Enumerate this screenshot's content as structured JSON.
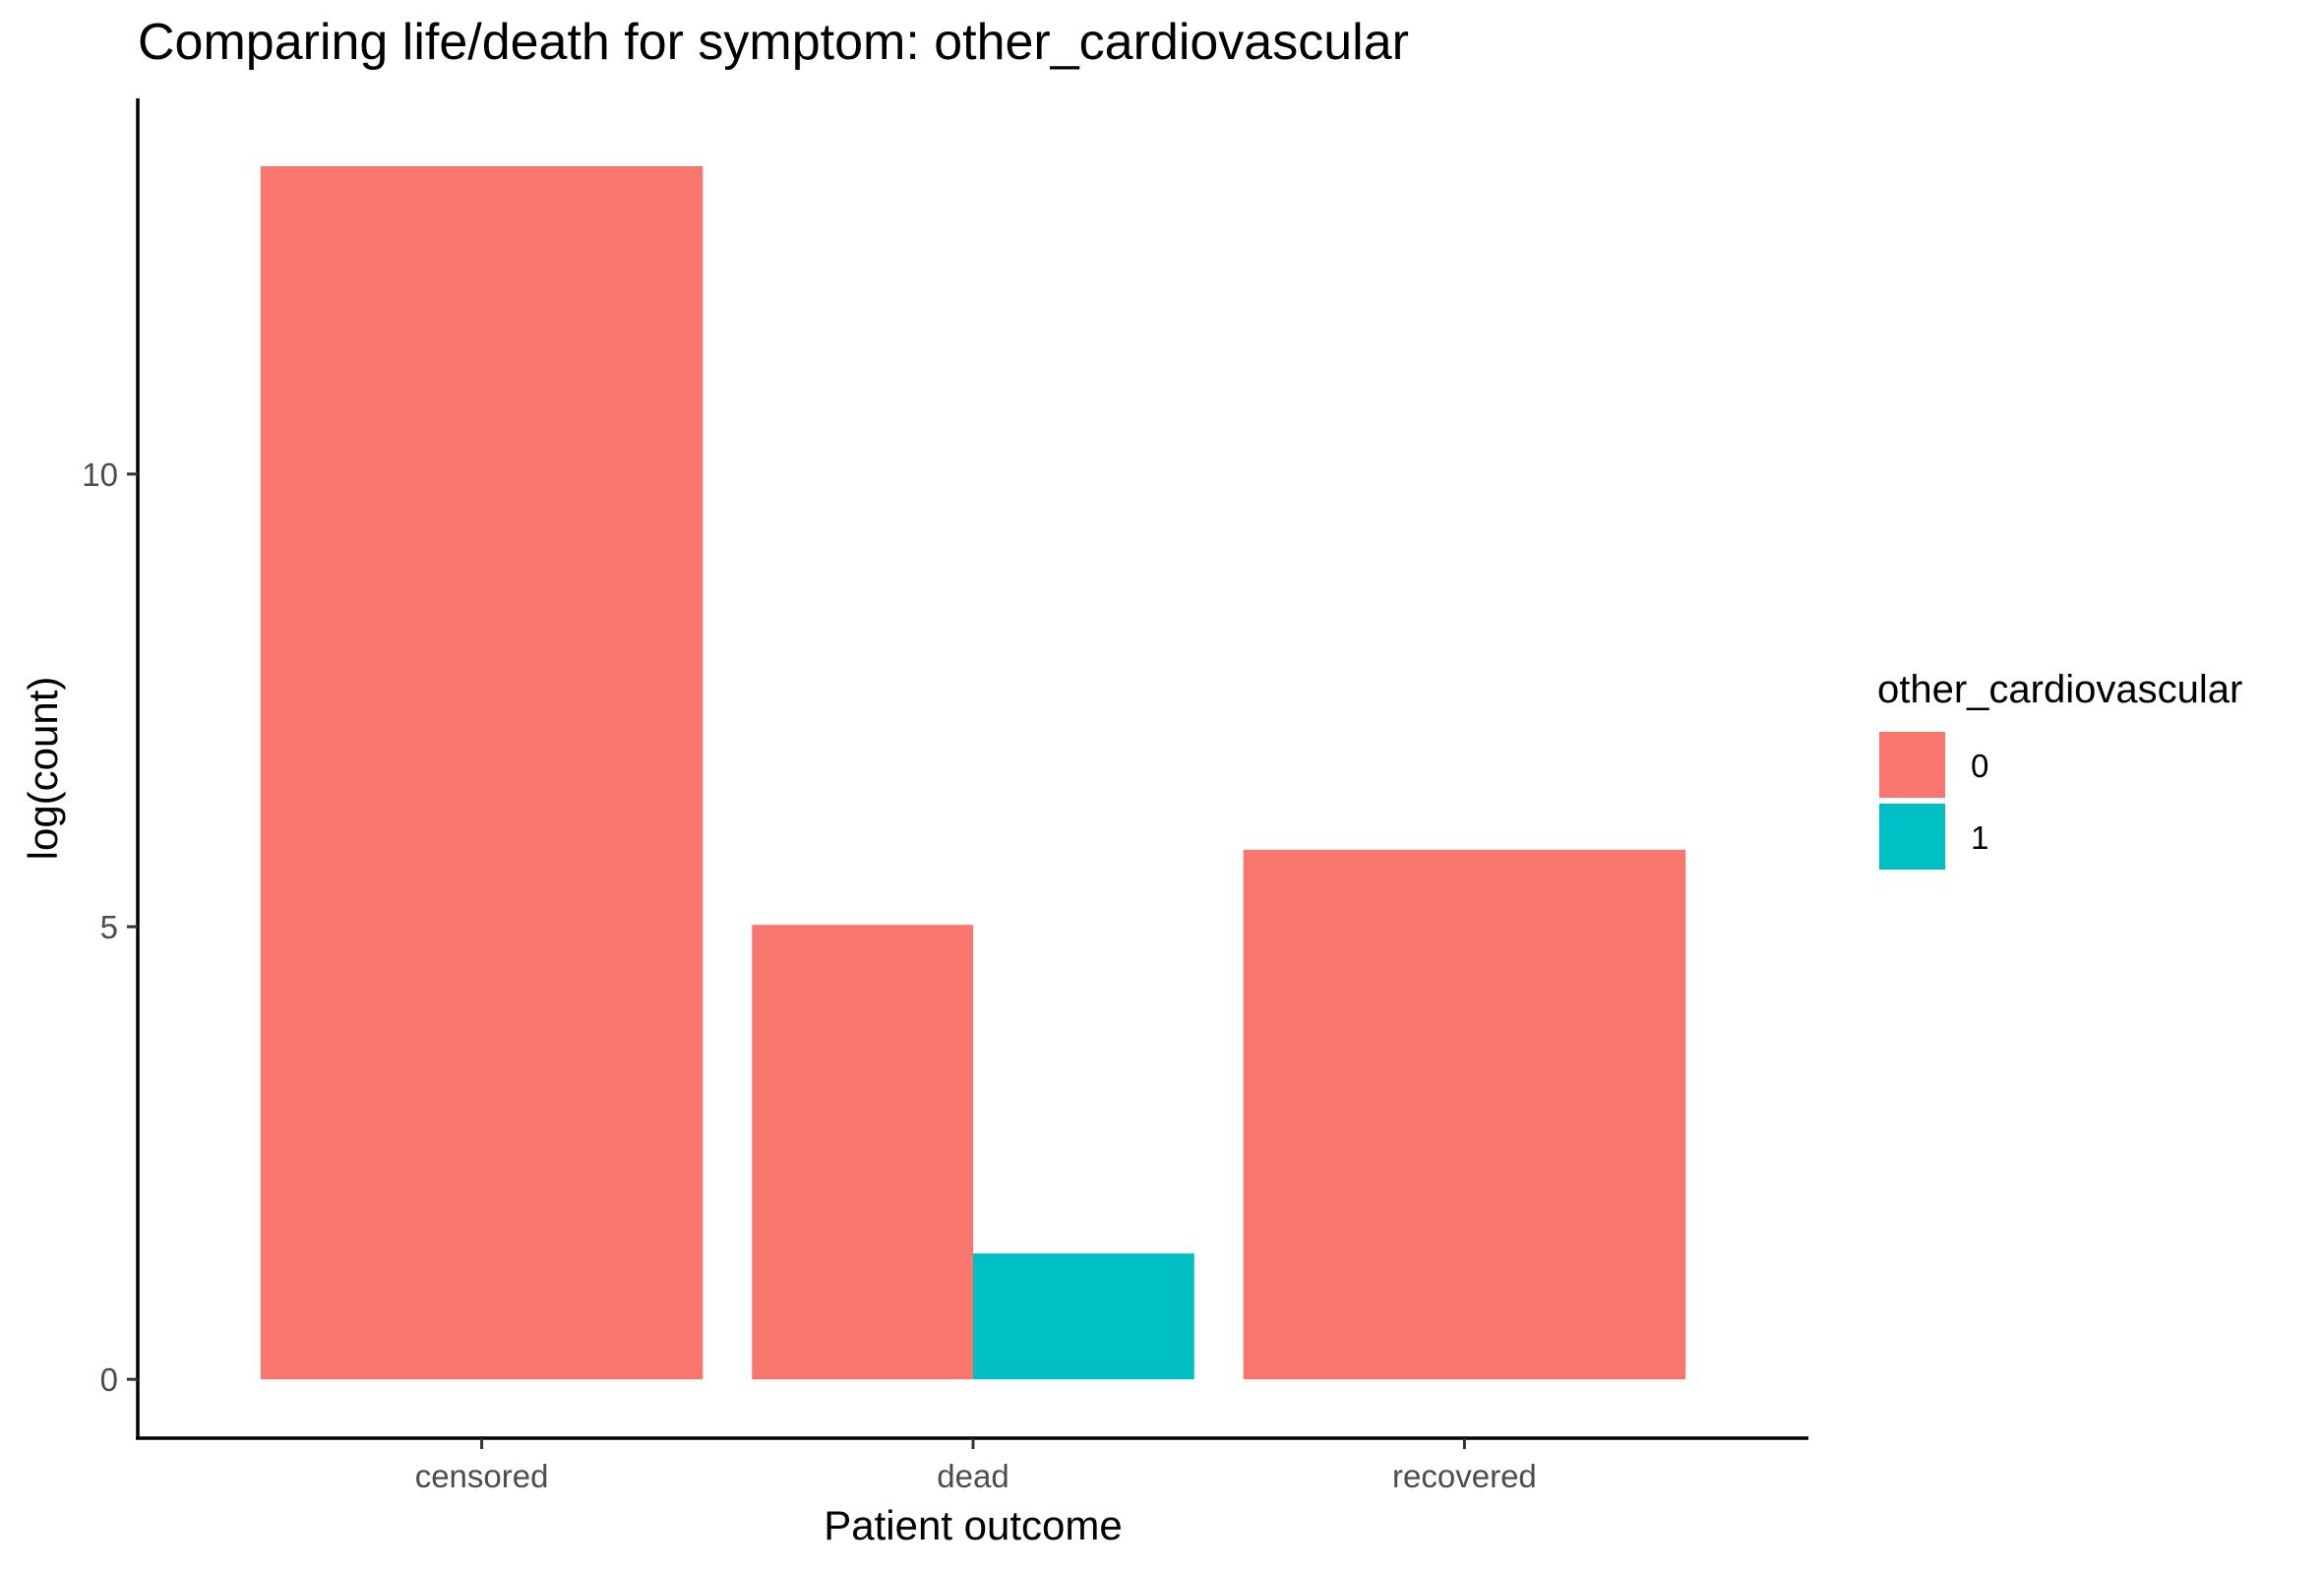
{
  "chart_data": {
    "type": "bar",
    "title": "Comparing life/death for symptom: other_cardiovascular",
    "xlabel": "Patient outcome",
    "ylabel": "log(count)",
    "categories": [
      "censored",
      "dead",
      "recovered"
    ],
    "ylim": [
      -0.65,
      14.15
    ],
    "yticks": [
      0,
      5,
      10
    ],
    "legend": {
      "title": "other_cardiovascular",
      "position": "right"
    },
    "series": [
      {
        "name": "0",
        "color": "#F8766D",
        "values": [
          13.4,
          5.02,
          5.85
        ]
      },
      {
        "name": "1",
        "color": "#00BFC4",
        "values": [
          null,
          1.39,
          null
        ]
      }
    ],
    "grid": false
  }
}
